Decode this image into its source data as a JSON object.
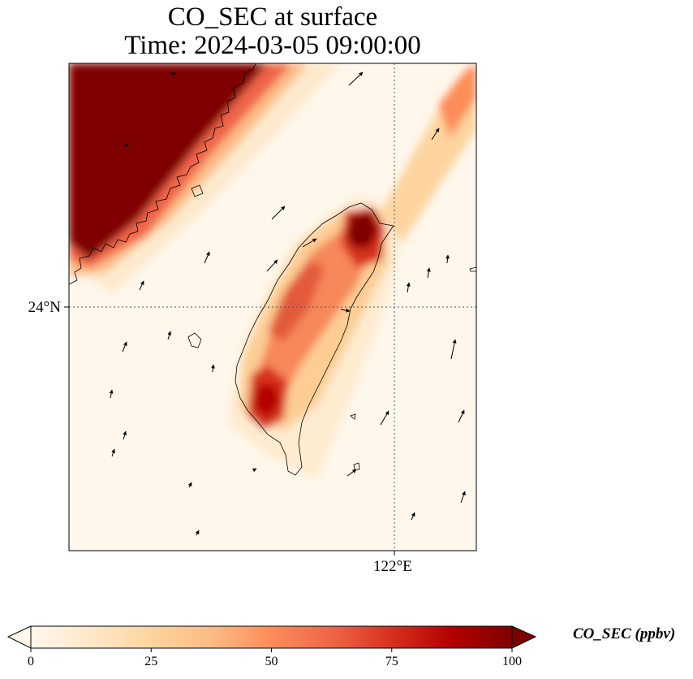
{
  "title": {
    "line1": "CO_SEC at surface",
    "line2": "Time: 2024-03-05 09:00:00"
  },
  "map": {
    "lat_gridline_label": "24°N",
    "lon_gridline_label": "122°E",
    "land_outline_color": "#000000",
    "gridline_style": "dotted"
  },
  "colorbar": {
    "label": "CO_SEC (ppbv)",
    "colormap": "OrRd",
    "extend": "both",
    "ticks": [
      "0",
      "25",
      "50",
      "75",
      "100"
    ],
    "stops": [
      "#fff7ec",
      "#fee8c8",
      "#fdd49e",
      "#fdbb84",
      "#fc8d59",
      "#ef6548",
      "#d7301f",
      "#b30000",
      "#7f0000"
    ]
  },
  "plume_features": [
    {
      "region": "northwest mainland coast",
      "concentration_ppbv": 100
    },
    {
      "region": "northern Taiwan (Taipei area)",
      "concentration_ppbv": 100
    },
    {
      "region": "southwestern Taiwan (Kaohsiung area)",
      "concentration_ppbv": 80
    },
    {
      "region": "western Taiwan plain",
      "concentration_ppbv": 45
    },
    {
      "region": "offshore northeast band",
      "concentration_ppbv": 30
    }
  ],
  "wind_vectors_shown": true
}
